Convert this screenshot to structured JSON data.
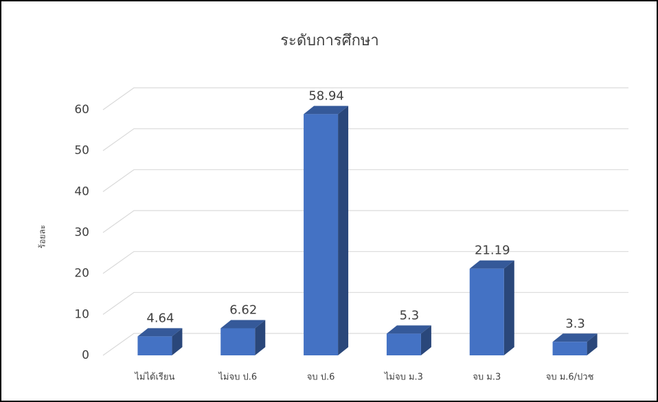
{
  "chart_data": {
    "type": "bar",
    "title": "ระดับการศึกษา",
    "y_label": "ร้อยละ",
    "categories": [
      "ไม่ได้เรียน",
      "ไม่จบ ป.6",
      "จบ ป.6",
      "ไม่จบ ม.3",
      "จบ ม.3",
      "จบ ม.6/ปวช"
    ],
    "values": [
      4.64,
      6.62,
      58.94,
      5.3,
      21.19,
      3.3
    ],
    "color": "#4472c4",
    "ylim": [
      0,
      60
    ],
    "yticks": [
      0,
      10,
      20,
      30,
      40,
      50,
      60
    ],
    "grid": true
  }
}
